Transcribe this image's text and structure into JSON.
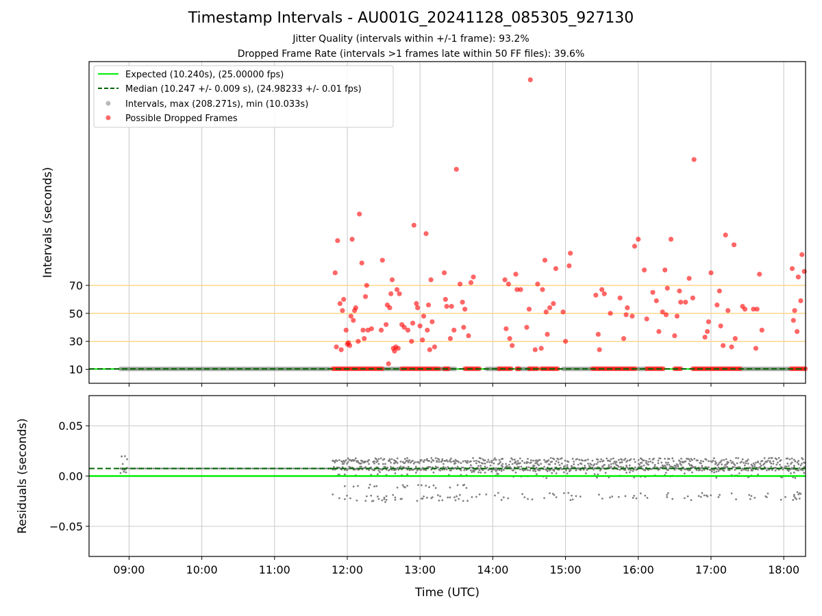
{
  "title": "Timestamp Intervals - AU001G_20241128_085305_927130",
  "subtitle1": "Jitter Quality (intervals within +/-1 frame): 93.2%",
  "subtitle2": "Dropped Frame Rate (intervals >1 frames late within 50 FF files): 39.6%",
  "colors": {
    "expected": "#00ee00",
    "median": "#006400",
    "intervals": "#808080",
    "dropped": "#ff0000",
    "threshold": "#ffd27f",
    "grid": "#c8c8c8"
  },
  "chart_data": [
    {
      "type": "scatter",
      "ylabel": "Intervals (seconds)",
      "xlabel": "",
      "ylim": [
        0,
        230
      ],
      "yticks": [
        10,
        30,
        50,
        70
      ],
      "x_time_range": [
        "08:27",
        "18:18"
      ],
      "xticks": [
        "09:00",
        "10:00",
        "11:00",
        "12:00",
        "13:00",
        "14:00",
        "15:00",
        "16:00",
        "17:00",
        "18:00"
      ],
      "grid": "vertical",
      "legend_position": "top-left",
      "legend": [
        "Expected (10.240s), (25.00000 fps)",
        "Median (10.247 +/- 0.009 s), (24.98233 +/- 0.01 fps)",
        "Intervals, max (208.271s), min (10.033s)",
        "Possible Dropped Frames"
      ],
      "expected_interval": 10.24,
      "median_interval": 10.247,
      "threshold_lines": [
        30,
        50,
        70
      ],
      "baseline_segments": [
        [
          "08:53",
          "11:47"
        ],
        [
          "12:30",
          "12:45"
        ],
        [
          "13:17",
          "13:30"
        ],
        [
          "13:55",
          "14:05"
        ],
        [
          "14:20",
          "14:30"
        ],
        [
          "14:58",
          "15:20"
        ],
        [
          "16:00",
          "16:06"
        ],
        [
          "17:25",
          "18:05"
        ]
      ],
      "dropped_on_baseline_segments": [
        [
          "11:48",
          "12:29"
        ],
        [
          "12:45",
          "13:16"
        ],
        [
          "13:20",
          "13:24"
        ],
        [
          "13:37",
          "13:50"
        ],
        [
          "14:05",
          "14:16"
        ],
        [
          "14:20",
          "14:22"
        ],
        [
          "14:30",
          "14:38"
        ],
        [
          "14:40",
          "14:55"
        ],
        [
          "15:22",
          "15:58"
        ],
        [
          "16:07",
          "16:22"
        ],
        [
          "16:30",
          "16:36"
        ],
        [
          "16:45",
          "17:24"
        ],
        [
          "18:06",
          "18:18"
        ]
      ],
      "dropped_frames": [
        [
          "11:50",
          79
        ],
        [
          "11:51",
          26
        ],
        [
          "11:52",
          102
        ],
        [
          "11:54",
          57
        ],
        [
          "11:55",
          24
        ],
        [
          "11:56",
          52
        ],
        [
          "11:57",
          60
        ],
        [
          "11:59",
          38
        ],
        [
          "12:00",
          28
        ],
        [
          "12:01",
          29
        ],
        [
          "12:02",
          27
        ],
        [
          "12:03",
          48
        ],
        [
          "12:04",
          103
        ],
        [
          "12:05",
          45
        ],
        [
          "12:06",
          52
        ],
        [
          "12:07",
          54
        ],
        [
          "12:09",
          30
        ],
        [
          "12:10",
          121
        ],
        [
          "12:12",
          86
        ],
        [
          "12:13",
          38
        ],
        [
          "12:14",
          32
        ],
        [
          "12:15",
          62
        ],
        [
          "12:16",
          70
        ],
        [
          "12:17",
          38
        ],
        [
          "12:20",
          39
        ],
        [
          "12:28",
          38
        ],
        [
          "12:29",
          88
        ],
        [
          "12:32",
          42
        ],
        [
          "12:33",
          56
        ],
        [
          "12:34",
          14
        ],
        [
          "12:35",
          54
        ],
        [
          "12:36",
          64
        ],
        [
          "12:37",
          74
        ],
        [
          "12:38",
          25
        ],
        [
          "12:39",
          23
        ],
        [
          "12:40",
          26
        ],
        [
          "12:41",
          67
        ],
        [
          "12:42",
          25
        ],
        [
          "12:43",
          64
        ],
        [
          "12:45",
          42
        ],
        [
          "12:47",
          40
        ],
        [
          "12:50",
          38
        ],
        [
          "12:53",
          30
        ],
        [
          "12:54",
          43
        ],
        [
          "12:55",
          113
        ],
        [
          "12:57",
          57
        ],
        [
          "12:58",
          54
        ],
        [
          "13:00",
          41
        ],
        [
          "13:02",
          31
        ],
        [
          "13:03",
          48
        ],
        [
          "13:05",
          107
        ],
        [
          "13:06",
          38
        ],
        [
          "13:07",
          56
        ],
        [
          "13:08",
          24
        ],
        [
          "13:09",
          74
        ],
        [
          "13:10",
          44
        ],
        [
          "13:12",
          26
        ],
        [
          "13:20",
          79
        ],
        [
          "13:21",
          60
        ],
        [
          "13:22",
          55
        ],
        [
          "13:25",
          32
        ],
        [
          "13:26",
          55
        ],
        [
          "13:28",
          38
        ],
        [
          "13:30",
          153
        ],
        [
          "13:33",
          71
        ],
        [
          "13:35",
          58
        ],
        [
          "13:36",
          40
        ],
        [
          "13:37",
          53
        ],
        [
          "13:40",
          34
        ],
        [
          "13:42",
          72
        ],
        [
          "13:44",
          76
        ],
        [
          "14:10",
          74
        ],
        [
          "14:11",
          39
        ],
        [
          "14:13",
          71
        ],
        [
          "14:14",
          32
        ],
        [
          "14:16",
          27
        ],
        [
          "14:19",
          78
        ],
        [
          "14:20",
          67
        ],
        [
          "14:23",
          67
        ],
        [
          "14:28",
          40
        ],
        [
          "14:30",
          53
        ],
        [
          "14:31",
          217
        ],
        [
          "14:35",
          24
        ],
        [
          "14:37",
          71
        ],
        [
          "14:40",
          25
        ],
        [
          "14:41",
          67
        ],
        [
          "14:43",
          88
        ],
        [
          "14:44",
          51
        ],
        [
          "14:45",
          35
        ],
        [
          "14:47",
          54
        ],
        [
          "14:50",
          57
        ],
        [
          "14:52",
          82
        ],
        [
          "14:58",
          51
        ],
        [
          "15:00",
          30
        ],
        [
          "15:03",
          84
        ],
        [
          "15:04",
          93
        ],
        [
          "15:25",
          63
        ],
        [
          "15:27",
          35
        ],
        [
          "15:28",
          24
        ],
        [
          "15:30",
          67
        ],
        [
          "15:32",
          64
        ],
        [
          "15:37",
          50
        ],
        [
          "15:45",
          61
        ],
        [
          "15:48",
          32
        ],
        [
          "15:50",
          49
        ],
        [
          "15:51",
          54
        ],
        [
          "15:55",
          48
        ],
        [
          "15:57",
          98
        ],
        [
          "16:00",
          103
        ],
        [
          "16:05",
          81
        ],
        [
          "16:07",
          46
        ],
        [
          "16:12",
          65
        ],
        [
          "16:15",
          59
        ],
        [
          "16:17",
          37
        ],
        [
          "16:20",
          51
        ],
        [
          "16:22",
          81
        ],
        [
          "16:23",
          49
        ],
        [
          "16:24",
          68
        ],
        [
          "16:27",
          103
        ],
        [
          "16:30",
          34
        ],
        [
          "16:32",
          48
        ],
        [
          "16:34",
          66
        ],
        [
          "16:35",
          58
        ],
        [
          "16:39",
          58
        ],
        [
          "16:42",
          75
        ],
        [
          "16:45",
          61
        ],
        [
          "16:46",
          160
        ],
        [
          "16:55",
          33
        ],
        [
          "16:57",
          37
        ],
        [
          "16:58",
          44
        ],
        [
          "17:00",
          79
        ],
        [
          "17:05",
          56
        ],
        [
          "17:07",
          66
        ],
        [
          "17:08",
          41
        ],
        [
          "17:10",
          27
        ],
        [
          "17:12",
          106
        ],
        [
          "17:14",
          52
        ],
        [
          "17:17",
          26
        ],
        [
          "17:19",
          99
        ],
        [
          "17:20",
          32
        ],
        [
          "17:26",
          55
        ],
        [
          "17:28",
          53
        ],
        [
          "17:35",
          53
        ],
        [
          "17:37",
          25
        ],
        [
          "17:38",
          53
        ],
        [
          "17:40",
          78
        ],
        [
          "17:42",
          38
        ],
        [
          "18:07",
          82
        ],
        [
          "18:08",
          45
        ],
        [
          "18:09",
          52
        ],
        [
          "18:11",
          37
        ],
        [
          "18:12",
          76
        ],
        [
          "18:14",
          59
        ],
        [
          "18:15",
          92
        ],
        [
          "18:17",
          80
        ]
      ]
    },
    {
      "type": "scatter",
      "ylabel": "Residuals (seconds)",
      "xlabel": "Time (UTC)",
      "ylim": [
        -0.08,
        0.08
      ],
      "yticks": [
        -0.05,
        0.0,
        0.05
      ],
      "ytick_labels": [
        "−0.05",
        "0.00",
        "0.05"
      ],
      "xticks": [
        "09:00",
        "10:00",
        "11:00",
        "12:00",
        "13:00",
        "14:00",
        "15:00",
        "16:00",
        "17:00",
        "18:00"
      ],
      "grid": "both",
      "expected_residual": 0.0,
      "median_residual": 0.0075,
      "residual_clusters": [
        {
          "from": "08:53",
          "to": "08:59",
          "values": [
            0.0075,
            0.018,
            0.004,
            0.012
          ]
        },
        {
          "from": "09:00",
          "to": "11:47",
          "values": [
            0.0075
          ]
        },
        {
          "from": "11:48",
          "to": "13:40",
          "values": [
            0.0075,
            0.016,
            0.014,
            0.002,
            -0.01,
            -0.02,
            -0.024
          ]
        },
        {
          "from": "13:41",
          "to": "18:18",
          "values": [
            0.0075,
            0.016,
            0.012,
            0.004,
            0.0,
            -0.018,
            -0.022
          ]
        }
      ]
    }
  ]
}
